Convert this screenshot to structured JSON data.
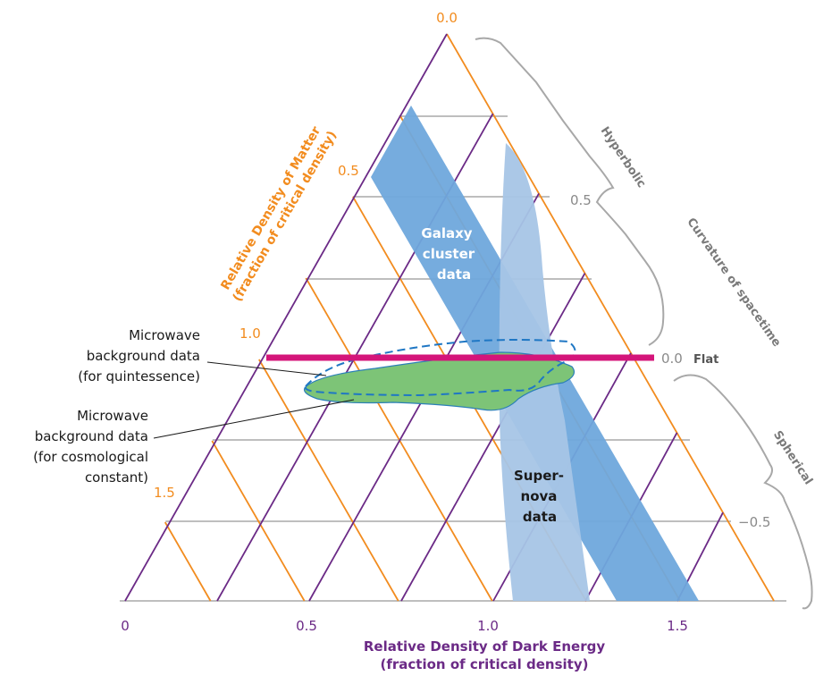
{
  "colors": {
    "matter_lines": "#f28c1f",
    "dark_energy_lines": "#6b2a86",
    "curvature_lines": "#a8a8a8",
    "flat_line": "#d4157a",
    "galaxy_band": "#6fa8dc",
    "supernova_band": "#a7c5e6",
    "cmb_cosmological": "#7dc477",
    "cmb_quintessence_outline": "#1f77c4"
  },
  "axes": {
    "matter": {
      "title_line1": "Relative Density of Matter",
      "title_line2": "(fraction of critical density)",
      "ticks": [
        "0.0",
        "0.5",
        "1.0",
        "1.5"
      ]
    },
    "dark_energy": {
      "title_line1": "Relative Density of Dark Energy",
      "title_line2": "(fraction of critical density)",
      "ticks": [
        "0",
        "0.5",
        "1.0",
        "1.5"
      ]
    },
    "curvature": {
      "title": "Curvature of spacetime",
      "ticks": [
        "0.5",
        "0.0",
        "−0.5"
      ],
      "flat_label": "Flat"
    }
  },
  "brackets": {
    "hyperbolic": "Hyperbolic",
    "spherical": "Spherical"
  },
  "regions": {
    "galaxy": [
      "Galaxy",
      "cluster",
      "data"
    ],
    "supernova": [
      "Super-",
      "nova",
      "data"
    ]
  },
  "callouts": {
    "quintessence": [
      "Microwave",
      "background data",
      "(for quintessence)"
    ],
    "cosmological": [
      "Microwave",
      "background data",
      "(for cosmological",
      "constant)"
    ]
  }
}
